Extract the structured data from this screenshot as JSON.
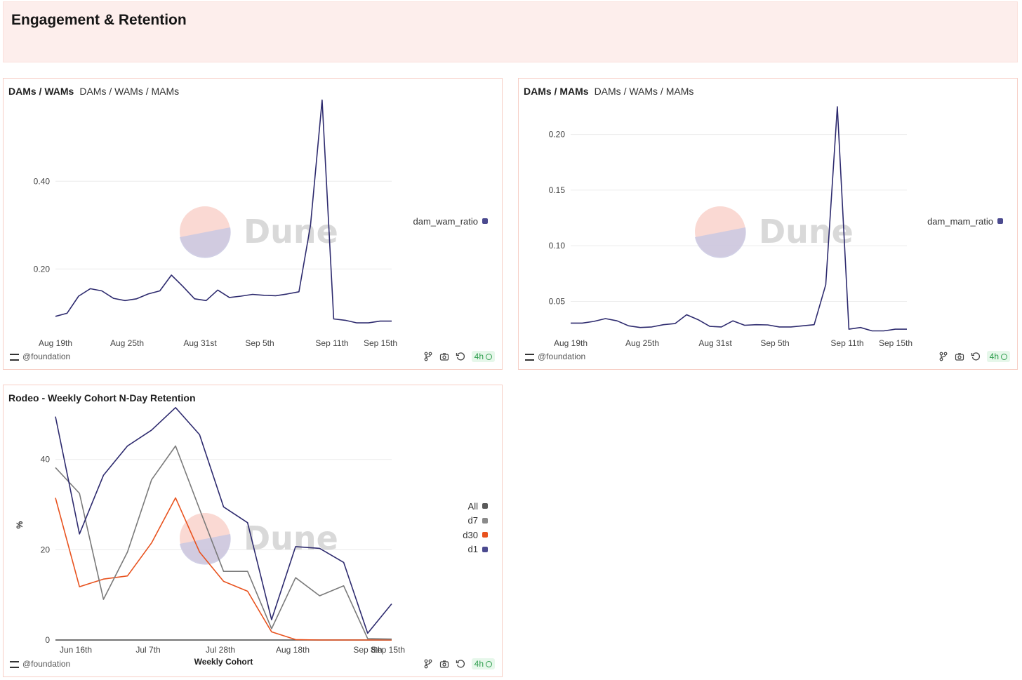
{
  "header": {
    "title": "Engagement & Retention"
  },
  "colors": {
    "navy": "#2d2a6e",
    "gray": "#7a7a7a",
    "orange": "#e8521e",
    "dark": "#5a5a5a",
    "muted": "#8a8a8a"
  },
  "watermark": "Dune",
  "cards": [
    {
      "title": "DAMs / WAMs",
      "subtitle": "DAMs / WAMs / MAMs",
      "footer_user": "@foundation",
      "freshness": "4h",
      "legend": [
        {
          "label": "dam_wam_ratio",
          "color": "#4b4a8f"
        }
      ]
    },
    {
      "title": "DAMs / MAMs",
      "subtitle": "DAMs / WAMs / MAMs",
      "footer_user": "@foundation",
      "freshness": "4h",
      "legend": [
        {
          "label": "dam_mam_ratio",
          "color": "#4b4a8f"
        }
      ]
    },
    {
      "title": "Rodeo - Weekly Cohort N-Day Retention",
      "subtitle": "",
      "footer_user": "@foundation",
      "freshness": "4h",
      "legend": [
        {
          "label": "All",
          "color": "#5a5a5a"
        },
        {
          "label": "d7",
          "color": "#8a8a8a"
        },
        {
          "label": "d30",
          "color": "#e8521e"
        },
        {
          "label": "d1",
          "color": "#4b4a8f"
        }
      ]
    }
  ],
  "chart_data": [
    {
      "type": "line",
      "title": "DAMs / WAMs",
      "xlabel": "",
      "ylabel": "",
      "x_ticks": [
        "Aug 19th",
        "Aug 25th",
        "Aug 31st",
        "Sep 5th",
        "Sep 11th",
        "Sep 15th"
      ],
      "y_ticks": [
        "0.40",
        "0.20"
      ],
      "ylim": [
        0.05,
        0.57
      ],
      "x": [
        "Aug 18",
        "Aug 19",
        "Aug 20",
        "Aug 21",
        "Aug 22",
        "Aug 23",
        "Aug 24",
        "Aug 25",
        "Aug 26",
        "Aug 27",
        "Aug 28",
        "Aug 29",
        "Aug 30",
        "Aug 31",
        "Sep 1",
        "Sep 2",
        "Sep 3",
        "Sep 4",
        "Sep 5",
        "Sep 6",
        "Sep 7",
        "Sep 8",
        "Sep 9",
        "Sep 10",
        "Sep 11",
        "Sep 12",
        "Sep 13",
        "Sep 14",
        "Sep 15",
        "Sep 16"
      ],
      "series": [
        {
          "name": "dam_wam_ratio",
          "values": [
            0.092,
            0.099,
            0.138,
            0.155,
            0.15,
            0.133,
            0.128,
            0.132,
            0.143,
            0.15,
            0.186,
            0.16,
            0.132,
            0.128,
            0.152,
            0.135,
            0.138,
            0.142,
            0.14,
            0.139,
            0.143,
            0.148,
            0.3,
            0.585,
            0.086,
            0.083,
            0.077,
            0.077,
            0.081,
            0.081
          ]
        }
      ],
      "legend_position": "right",
      "grid": true
    },
    {
      "type": "line",
      "title": "DAMs / MAMs",
      "xlabel": "",
      "ylabel": "",
      "x_ticks": [
        "Aug 19th",
        "Aug 25th",
        "Aug 31st",
        "Sep 5th",
        "Sep 11th",
        "Sep 15th"
      ],
      "y_ticks": [
        "0.20",
        "0.15",
        "0.10",
        "0.05"
      ],
      "ylim": [
        0.02,
        0.225
      ],
      "x": [
        "Aug 18",
        "Aug 19",
        "Aug 20",
        "Aug 21",
        "Aug 22",
        "Aug 23",
        "Aug 24",
        "Aug 25",
        "Aug 26",
        "Aug 27",
        "Aug 28",
        "Aug 29",
        "Aug 30",
        "Aug 31",
        "Sep 1",
        "Sep 2",
        "Sep 3",
        "Sep 4",
        "Sep 5",
        "Sep 6",
        "Sep 7",
        "Sep 8",
        "Sep 9",
        "Sep 10",
        "Sep 11",
        "Sep 12",
        "Sep 13",
        "Sep 14",
        "Sep 15",
        "Sep 16"
      ],
      "series": [
        {
          "name": "dam_mam_ratio",
          "values": [
            0.0305,
            0.0305,
            0.032,
            0.0345,
            0.0325,
            0.028,
            0.0265,
            0.027,
            0.029,
            0.03,
            0.038,
            0.0335,
            0.0275,
            0.027,
            0.0325,
            0.0285,
            0.029,
            0.0288,
            0.027,
            0.027,
            0.028,
            0.029,
            0.065,
            0.225,
            0.025,
            0.0265,
            0.0235,
            0.0235,
            0.025,
            0.025
          ]
        }
      ],
      "legend_position": "right",
      "grid": true
    },
    {
      "type": "line",
      "title": "Rodeo - Weekly Cohort N-Day Retention",
      "xlabel": "Weekly Cohort",
      "ylabel": "%",
      "x_ticks": [
        "Jun 16th",
        "Jul 7th",
        "Jul 28th",
        "Aug 18th",
        "Sep 8th",
        "Sep 15th"
      ],
      "y_ticks": [
        "40",
        "20",
        "0"
      ],
      "ylim": [
        0,
        51
      ],
      "x": [
        "Jun 9",
        "Jun 16",
        "Jun 23",
        "Jun 30",
        "Jul 7",
        "Jul 14",
        "Jul 21",
        "Jul 28",
        "Aug 4",
        "Aug 11",
        "Aug 18",
        "Aug 25",
        "Sep 1",
        "Sep 8",
        "Sep 15"
      ],
      "series": [
        {
          "name": "d1",
          "values": [
            49.5,
            23.5,
            36.5,
            43.0,
            46.5,
            51.5,
            45.5,
            29.5,
            26.0,
            4.5,
            20.7,
            20.3,
            17.2,
            1.5,
            8.0
          ]
        },
        {
          "name": "d7",
          "values": [
            38.2,
            32.5,
            9.0,
            19.5,
            35.5,
            43.0,
            29.0,
            15.2,
            15.2,
            2.5,
            13.8,
            9.8,
            12.0,
            0.3,
            0.2
          ]
        },
        {
          "name": "d30",
          "values": [
            31.5,
            11.8,
            13.5,
            14.2,
            21.5,
            31.5,
            19.5,
            13.0,
            10.8,
            1.8,
            0.1,
            0.0,
            0.0,
            0.0,
            0.0
          ]
        },
        {
          "name": "All",
          "values": [
            0.0,
            0.0,
            0.0,
            0.0,
            0.0,
            0.0,
            0.0,
            0.0,
            0.0,
            0.0,
            0.0,
            0.0,
            0.0,
            0.0,
            0.0
          ]
        }
      ],
      "legend_position": "right",
      "grid": true
    }
  ]
}
